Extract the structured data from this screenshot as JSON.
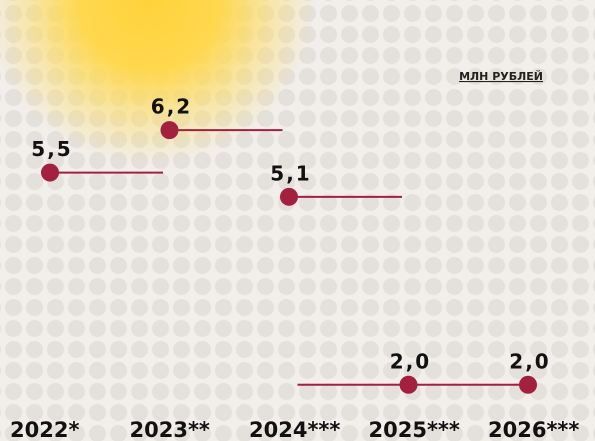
{
  "chart_data": {
    "type": "dot",
    "unit": "МЛН РУБЛЕЙ",
    "categories": [
      "2022*",
      "2023**",
      "2024***",
      "2025***",
      "2026***"
    ],
    "values": [
      5.5,
      6.2,
      5.1,
      2.0,
      2.0
    ],
    "value_labels": [
      "5,5",
      "6,2",
      "5,1",
      "2,0",
      "2,0"
    ],
    "color": "#a3203f",
    "ylim": [
      0,
      8
    ]
  }
}
